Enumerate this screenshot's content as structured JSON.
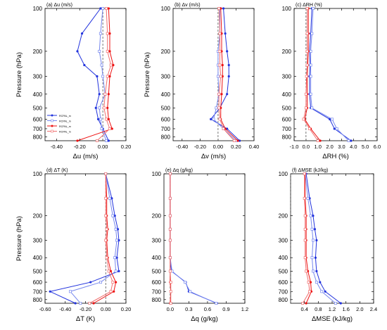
{
  "colors": {
    "blue": "#2233dd",
    "light_blue": "#7788ee",
    "red": "#ee1111",
    "light_red": "#f07070",
    "axis": "#000000",
    "zero_line": "#555555"
  },
  "legend_labels": [
    "RCPAL_m",
    "RCPAL_m",
    "RCPAL_m",
    "RCPAL_m"
  ],
  "chart_data": [
    {
      "type": "line",
      "panel": "(a) Δu (m/s)",
      "xlabel": "Δu (m/s)",
      "ylabel": "Pressure (hPa)",
      "xlim": [
        -0.5,
        0.2
      ],
      "xticks": [
        -0.4,
        -0.2,
        0.0,
        0.2
      ],
      "xtick_labels": [
        "-0.40",
        "-0.20",
        "0.00",
        "0.20"
      ],
      "yscale": "log",
      "ylim": [
        850,
        100
      ],
      "yticks": [
        100,
        200,
        300,
        400,
        500,
        600,
        700,
        800
      ],
      "legend": "bottom-left",
      "pressure": [
        100,
        150,
        200,
        250,
        300,
        400,
        500,
        600,
        700,
        850
      ],
      "series": [
        {
          "marker": "filled",
          "color": "blue",
          "values": [
            -0.02,
            -0.18,
            -0.22,
            -0.16,
            -0.05,
            -0.03,
            -0.06,
            -0.04,
            0.0,
            0.05
          ]
        },
        {
          "marker": "open",
          "color": "light_blue",
          "values": [
            0.0,
            -0.02,
            -0.03,
            -0.01,
            0.0,
            0.02,
            -0.03,
            -0.02,
            -0.01,
            0.03
          ]
        },
        {
          "marker": "filled",
          "color": "red",
          "values": [
            0.05,
            0.06,
            0.06,
            0.09,
            0.06,
            0.05,
            0.04,
            0.05,
            0.08,
            -0.22
          ]
        },
        {
          "marker": "open",
          "color": "light_red",
          "values": [
            0.03,
            0.04,
            0.04,
            0.07,
            0.04,
            0.02,
            0.01,
            0.03,
            0.06,
            -0.05
          ]
        }
      ]
    },
    {
      "type": "line",
      "panel": "(b) Δv (m/s)",
      "xlabel": "Δv (m/s)",
      "ylabel": "Pressure (hPa)",
      "xlim": [
        -0.5,
        0.4
      ],
      "xticks": [
        -0.4,
        -0.2,
        0.0,
        0.2,
        0.4
      ],
      "xtick_labels": [
        "-0.40",
        "-0.20",
        "0.00",
        "0.20",
        "0.40"
      ],
      "yscale": "log",
      "ylim": [
        850,
        100
      ],
      "yticks": [
        100,
        200,
        300,
        400,
        500,
        600,
        700,
        800
      ],
      "pressure": [
        100,
        150,
        200,
        250,
        300,
        400,
        500,
        600,
        700,
        850
      ],
      "series": [
        {
          "marker": "filled",
          "color": "blue",
          "values": [
            0.06,
            0.08,
            0.1,
            0.12,
            0.12,
            0.1,
            0.02,
            -0.08,
            0.1,
            0.24
          ]
        },
        {
          "marker": "open",
          "color": "light_blue",
          "values": [
            0.02,
            0.02,
            0.0,
            0.0,
            0.0,
            0.01,
            -0.02,
            -0.05,
            0.06,
            0.2
          ]
        },
        {
          "marker": "filled",
          "color": "red",
          "values": [
            0.03,
            0.04,
            0.04,
            0.05,
            0.05,
            0.04,
            0.03,
            0.03,
            0.08,
            0.22
          ]
        },
        {
          "marker": "open",
          "color": "light_red",
          "values": [
            0.01,
            0.02,
            0.02,
            0.02,
            0.03,
            0.01,
            0.01,
            0.02,
            0.06,
            0.18
          ]
        }
      ]
    },
    {
      "type": "line",
      "panel": "(c) ΔRH (%)",
      "xlabel": "ΔRH (%)",
      "ylabel": "",
      "xlim": [
        -1.0,
        6.0
      ],
      "xticks": [
        -1.0,
        0.0,
        1.0,
        2.0,
        3.0,
        4.0,
        5.0,
        6.0
      ],
      "xtick_labels": [
        "-1.0",
        "0.0",
        "1.0",
        "2.0",
        "3.0",
        "4.0",
        "5.0",
        "6.0"
      ],
      "yscale": "log",
      "ylim": [
        850,
        100
      ],
      "yticks": [
        100,
        200,
        300,
        400,
        500,
        600,
        700,
        800
      ],
      "pressure": [
        100,
        150,
        200,
        250,
        300,
        400,
        500,
        600,
        700,
        850
      ],
      "series": [
        {
          "marker": "filled",
          "color": "blue",
          "values": [
            0.5,
            0.4,
            0.3,
            0.35,
            0.3,
            0.3,
            0.4,
            2.0,
            2.4,
            3.8
          ]
        },
        {
          "marker": "open",
          "color": "light_blue",
          "values": [
            0.6,
            0.5,
            0.4,
            0.4,
            0.4,
            0.4,
            0.5,
            2.2,
            2.6,
            3.6
          ]
        },
        {
          "marker": "filled",
          "color": "red",
          "values": [
            0.2,
            0.2,
            0.2,
            0.15,
            0.1,
            0.1,
            0.1,
            -0.1,
            0.4,
            1.2
          ]
        },
        {
          "marker": "open",
          "color": "light_red",
          "values": [
            0.1,
            0.1,
            0.1,
            0.1,
            0.05,
            0.0,
            0.0,
            -0.2,
            0.3,
            1.0
          ]
        }
      ]
    },
    {
      "type": "line",
      "panel": "(d) ΔT (K)",
      "xlabel": "ΔT (K)",
      "ylabel": "Pressure (hPa)",
      "xlim": [
        -0.6,
        0.2
      ],
      "xticks": [
        -0.6,
        -0.4,
        -0.2,
        0.0,
        0.2
      ],
      "xtick_labels": [
        "-0.60",
        "-0.40",
        "-0.20",
        "0.00",
        "0.20"
      ],
      "yscale": "log",
      "ylim": [
        850,
        100
      ],
      "yticks": [
        100,
        200,
        300,
        400,
        500,
        600,
        700,
        800
      ],
      "pressure": [
        100,
        150,
        200,
        250,
        300,
        400,
        500,
        600,
        700,
        850
      ],
      "series": [
        {
          "marker": "filled",
          "color": "blue",
          "values": [
            0.0,
            0.06,
            0.09,
            0.12,
            0.13,
            0.11,
            0.13,
            -0.15,
            -0.55,
            -0.3
          ]
        },
        {
          "marker": "open",
          "color": "light_blue",
          "values": [
            0.0,
            0.04,
            0.07,
            0.1,
            0.11,
            0.09,
            0.1,
            -0.05,
            -0.35,
            -0.25
          ]
        },
        {
          "marker": "filled",
          "color": "red",
          "values": [
            0.0,
            0.01,
            0.01,
            0.02,
            0.01,
            0.02,
            0.05,
            0.1,
            0.08,
            -0.12
          ]
        },
        {
          "marker": "open",
          "color": "light_red",
          "values": [
            0.0,
            0.0,
            0.0,
            0.01,
            0.0,
            0.01,
            0.03,
            0.07,
            0.05,
            -0.16
          ]
        }
      ]
    },
    {
      "type": "line",
      "panel": "(e) Δq (g/kg)",
      "xlabel": "Δq (g/kg)",
      "ylabel": "",
      "xlim": [
        -0.1,
        1.2
      ],
      "xticks": [
        0.0,
        0.3,
        0.6,
        0.9,
        1.2
      ],
      "xtick_labels": [
        "0.0",
        "0.3",
        "0.6",
        "0.9",
        "1.2"
      ],
      "yscale": "log",
      "ylim": [
        850,
        100
      ],
      "yticks": [
        100,
        200,
        300,
        400,
        500,
        600,
        700,
        800
      ],
      "pressure": [
        100,
        150,
        200,
        250,
        300,
        400,
        500,
        600,
        700,
        850
      ],
      "series": [
        {
          "marker": "filled",
          "color": "blue",
          "values": [
            0.0,
            0.0,
            0.0,
            0.0,
            0.0,
            0.0,
            0.02,
            0.25,
            0.3,
            0.75
          ]
        },
        {
          "marker": "open",
          "color": "light_blue",
          "values": [
            0.0,
            0.0,
            0.0,
            0.0,
            0.0,
            0.0,
            0.03,
            0.24,
            0.32,
            0.74
          ]
        },
        {
          "marker": "filled",
          "color": "red",
          "values": [
            0.0,
            0.0,
            0.0,
            0.0,
            0.0,
            0.0,
            0.0,
            0.0,
            0.01,
            0.0
          ]
        },
        {
          "marker": "open",
          "color": "light_red",
          "values": [
            0.0,
            0.0,
            0.0,
            0.0,
            0.0,
            0.0,
            0.0,
            0.01,
            0.01,
            0.01
          ]
        }
      ]
    },
    {
      "type": "line",
      "panel": "(f) ΔMSE (kJ/kg)",
      "xlabel": "ΔMSE (kJ/kg)",
      "ylabel": "",
      "xlim": [
        0.0,
        2.4
      ],
      "xticks": [
        0.4,
        0.8,
        1.2,
        1.6,
        2.0,
        2.4
      ],
      "xtick_labels": [
        "0.4",
        "0.8",
        "1.2",
        "1.6",
        "2.0",
        "2.4"
      ],
      "yscale": "log",
      "ylim": [
        850,
        100
      ],
      "yticks": [
        100,
        200,
        300,
        400,
        500,
        600,
        700,
        800
      ],
      "pressure": [
        100,
        150,
        200,
        250,
        300,
        400,
        500,
        600,
        700,
        850
      ],
      "series": [
        {
          "marker": "filled",
          "color": "blue",
          "values": [
            0.45,
            0.55,
            0.65,
            0.7,
            0.75,
            0.72,
            0.75,
            0.85,
            1.0,
            1.45
          ]
        },
        {
          "marker": "open",
          "color": "light_blue",
          "values": [
            0.42,
            0.5,
            0.58,
            0.62,
            0.65,
            0.62,
            0.65,
            0.75,
            0.9,
            1.3
          ]
        },
        {
          "marker": "filled",
          "color": "red",
          "values": [
            0.42,
            0.42,
            0.45,
            0.45,
            0.45,
            0.45,
            0.5,
            0.58,
            0.6,
            0.45
          ]
        },
        {
          "marker": "open",
          "color": "light_red",
          "values": [
            0.4,
            0.4,
            0.42,
            0.42,
            0.42,
            0.42,
            0.45,
            0.52,
            0.55,
            0.35
          ]
        }
      ]
    }
  ]
}
